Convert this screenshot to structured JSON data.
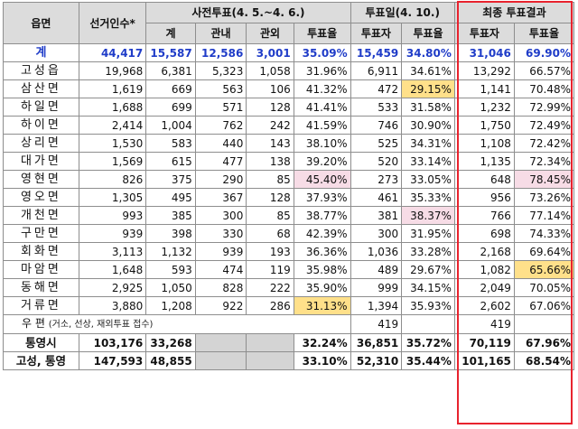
{
  "headers": {
    "district": "읍면",
    "electorate": "선거인수*",
    "early_group": "사전투표(4. 5.~4. 6.)",
    "eday_group": "투표일(4. 10.)",
    "final_group": "최종 투표결과",
    "sub": {
      "early_total": "계",
      "early_in": "관내",
      "early_out": "관외",
      "early_rate": "투표율",
      "eday_voters": "투표자",
      "eday_rate": "투표율",
      "final_voters": "투표자",
      "final_rate": "투표율"
    }
  },
  "total": {
    "name": "계",
    "electorate": "44,417",
    "early_total": "15,587",
    "early_in": "12,586",
    "early_out": "3,001",
    "early_rate": "35.09%",
    "eday_voters": "15,459",
    "eday_rate": "34.80%",
    "final_voters": "31,046",
    "final_rate": "69.90%"
  },
  "rows": [
    {
      "name": "고성읍",
      "electorate": "19,968",
      "early_total": "6,381",
      "early_in": "5,323",
      "early_out": "1,058",
      "early_rate": "31.96%",
      "eday_voters": "6,911",
      "eday_rate": "34.61%",
      "final_voters": "13,292",
      "final_rate": "66.57%"
    },
    {
      "name": "삼산면",
      "electorate": "1,619",
      "early_total": "669",
      "early_in": "563",
      "early_out": "106",
      "early_rate": "41.32%",
      "eday_voters": "472",
      "eday_rate": "29.15%",
      "final_voters": "1,141",
      "final_rate": "70.48%"
    },
    {
      "name": "하일면",
      "electorate": "1,688",
      "early_total": "699",
      "early_in": "571",
      "early_out": "128",
      "early_rate": "41.41%",
      "eday_voters": "533",
      "eday_rate": "31.58%",
      "final_voters": "1,232",
      "final_rate": "72.99%"
    },
    {
      "name": "하이면",
      "electorate": "2,414",
      "early_total": "1,004",
      "early_in": "762",
      "early_out": "242",
      "early_rate": "41.59%",
      "eday_voters": "746",
      "eday_rate": "30.90%",
      "final_voters": "1,750",
      "final_rate": "72.49%"
    },
    {
      "name": "상리면",
      "electorate": "1,530",
      "early_total": "583",
      "early_in": "440",
      "early_out": "143",
      "early_rate": "38.10%",
      "eday_voters": "525",
      "eday_rate": "34.31%",
      "final_voters": "1,108",
      "final_rate": "72.42%"
    },
    {
      "name": "대가면",
      "electorate": "1,569",
      "early_total": "615",
      "early_in": "477",
      "early_out": "138",
      "early_rate": "39.20%",
      "eday_voters": "520",
      "eday_rate": "33.14%",
      "final_voters": "1,135",
      "final_rate": "72.34%"
    },
    {
      "name": "영현면",
      "electorate": "826",
      "early_total": "375",
      "early_in": "290",
      "early_out": "85",
      "early_rate": "45.40%",
      "eday_voters": "273",
      "eday_rate": "33.05%",
      "final_voters": "648",
      "final_rate": "78.45%"
    },
    {
      "name": "영오면",
      "electorate": "1,305",
      "early_total": "495",
      "early_in": "367",
      "early_out": "128",
      "early_rate": "37.93%",
      "eday_voters": "461",
      "eday_rate": "35.33%",
      "final_voters": "956",
      "final_rate": "73.26%"
    },
    {
      "name": "개천면",
      "electorate": "993",
      "early_total": "385",
      "early_in": "300",
      "early_out": "85",
      "early_rate": "38.77%",
      "eday_voters": "381",
      "eday_rate": "38.37%",
      "final_voters": "766",
      "final_rate": "77.14%"
    },
    {
      "name": "구만면",
      "electorate": "939",
      "early_total": "398",
      "early_in": "330",
      "early_out": "68",
      "early_rate": "42.39%",
      "eday_voters": "300",
      "eday_rate": "31.95%",
      "final_voters": "698",
      "final_rate": "74.33%"
    },
    {
      "name": "회화면",
      "electorate": "3,113",
      "early_total": "1,132",
      "early_in": "939",
      "early_out": "193",
      "early_rate": "36.36%",
      "eday_voters": "1,036",
      "eday_rate": "33.28%",
      "final_voters": "2,168",
      "final_rate": "69.64%"
    },
    {
      "name": "마암면",
      "electorate": "1,648",
      "early_total": "593",
      "early_in": "474",
      "early_out": "119",
      "early_rate": "35.98%",
      "eday_voters": "489",
      "eday_rate": "29.67%",
      "final_voters": "1,082",
      "final_rate": "65.66%"
    },
    {
      "name": "동해면",
      "electorate": "2,925",
      "early_total": "1,050",
      "early_in": "828",
      "early_out": "222",
      "early_rate": "35.90%",
      "eday_voters": "999",
      "eday_rate": "34.15%",
      "final_voters": "2,049",
      "final_rate": "70.05%"
    },
    {
      "name": "거류면",
      "electorate": "3,880",
      "early_total": "1,208",
      "early_in": "922",
      "early_out": "286",
      "early_rate": "31.13%",
      "eday_voters": "1,394",
      "eday_rate": "35.93%",
      "final_voters": "2,602",
      "final_rate": "67.06%"
    }
  ],
  "postal": {
    "label": "우 편",
    "note": "(거소, 선상, 재외투표 접수)",
    "eday_voters": "419",
    "final_voters": "419"
  },
  "sums": [
    {
      "name": "통영시",
      "electorate": "103,176",
      "early_total": "33,268",
      "early_rate": "32.24%",
      "eday_voters": "36,851",
      "eday_rate": "35.72%",
      "final_voters": "70,119",
      "final_rate": "67.96%"
    },
    {
      "name": "고성, 통영",
      "electorate": "147,593",
      "early_total": "48,855",
      "early_rate": "33.10%",
      "eday_voters": "52,310",
      "eday_rate": "35.44%",
      "final_voters": "101,165",
      "final_rate": "68.54%"
    }
  ],
  "highlights": {
    "yellow_hex": "#ffe08a",
    "pink_hex": "#f7dce6",
    "frame_hex": "#e8232e",
    "header_hex": "#dcdcdc",
    "total_text_hex": "#1f3cc8"
  }
}
